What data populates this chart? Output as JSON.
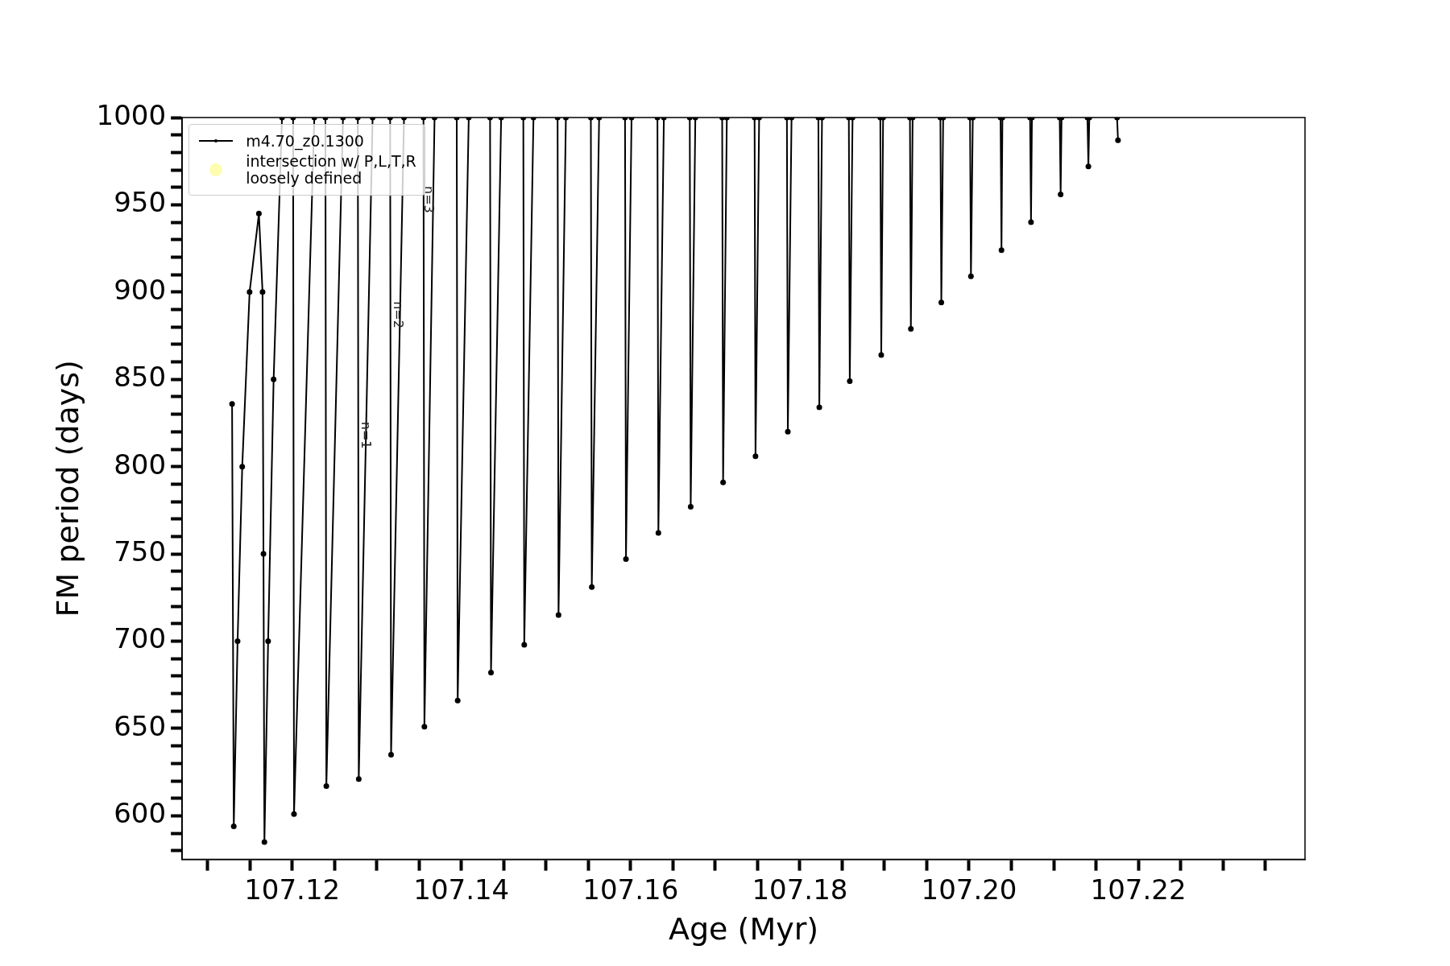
{
  "chart_data": {
    "type": "line",
    "xlabel": "Age (Myr)",
    "ylabel": "FM period (days)",
    "xlim": [
      107.107,
      107.2397
    ],
    "ylim": [
      575,
      1000
    ],
    "xticks": [
      {
        "value": 107.11,
        "label": null
      },
      {
        "value": 107.115,
        "label": null
      },
      107.12,
      {
        "value": 107.125,
        "label": null
      },
      {
        "value": 107.13,
        "label": null
      },
      {
        "value": 107.135,
        "label": null
      },
      107.14,
      {
        "value": 107.145,
        "label": null
      },
      {
        "value": 107.15,
        "label": null
      },
      {
        "value": 107.155,
        "label": null
      },
      107.16,
      {
        "value": 107.165,
        "label": null
      },
      {
        "value": 107.17,
        "label": null
      },
      {
        "value": 107.175,
        "label": null
      },
      107.18,
      {
        "value": 107.185,
        "label": null
      },
      {
        "value": 107.19,
        "label": null
      },
      {
        "value": 107.195,
        "label": null
      },
      {
        "value": 107.2,
        "label": "107.20"
      },
      {
        "value": 107.205,
        "label": null
      },
      {
        "value": 107.21,
        "label": null
      },
      {
        "value": 107.215,
        "label": null
      },
      107.22,
      {
        "value": 107.225,
        "label": null
      },
      {
        "value": 107.23,
        "label": null
      },
      {
        "value": 107.235,
        "label": null
      }
    ],
    "yticks": [
      {
        "value": 580,
        "label": null
      },
      {
        "value": 590,
        "label": null
      },
      600,
      {
        "value": 610,
        "label": null
      },
      {
        "value": 620,
        "label": null
      },
      {
        "value": 630,
        "label": null
      },
      {
        "value": 640,
        "label": null
      },
      650,
      {
        "value": 660,
        "label": null
      },
      {
        "value": 670,
        "label": null
      },
      {
        "value": 680,
        "label": null
      },
      {
        "value": 690,
        "label": null
      },
      700,
      {
        "value": 710,
        "label": null
      },
      {
        "value": 720,
        "label": null
      },
      {
        "value": 730,
        "label": null
      },
      {
        "value": 740,
        "label": null
      },
      750,
      {
        "value": 760,
        "label": null
      },
      {
        "value": 770,
        "label": null
      },
      {
        "value": 780,
        "label": null
      },
      {
        "value": 790,
        "label": null
      },
      800,
      {
        "value": 810,
        "label": null
      },
      {
        "value": 820,
        "label": null
      },
      {
        "value": 830,
        "label": null
      },
      {
        "value": 840,
        "label": null
      },
      850,
      {
        "value": 860,
        "label": null
      },
      {
        "value": 870,
        "label": null
      },
      {
        "value": 880,
        "label": null
      },
      {
        "value": 890,
        "label": null
      },
      900,
      {
        "value": 910,
        "label": null
      },
      {
        "value": 920,
        "label": null
      },
      {
        "value": 930,
        "label": null
      },
      {
        "value": 940,
        "label": null
      },
      950,
      {
        "value": 960,
        "label": null
      },
      {
        "value": 970,
        "label": null
      },
      {
        "value": 980,
        "label": null
      },
      {
        "value": 990,
        "label": null
      },
      1000
    ],
    "grid": false,
    "legend": "top left",
    "marker": "circle",
    "line_style": "solid",
    "series": [
      {
        "name": "m4.70_z0.1300",
        "color": "#000000",
        "x": [
          107.1129,
          107.1131,
          107.11355,
          107.1141,
          107.11497,
          107.11607,
          107.1165,
          107.11661,
          107.11672,
          107.11716,
          107.11781,
          107.1188,
          null,
          107.12011,
          107.12022,
          107.12262,
          null,
          107.12393,
          107.12404,
          107.12601,
          null,
          107.12776,
          107.12787,
          107.12951,
          null,
          107.13158,
          107.13169,
          107.13322,
          null,
          107.13552,
          107.13563,
          107.13683,
          null,
          107.13945,
          107.13956,
          107.14087,
          null,
          107.14339,
          107.1435,
          107.1447,
          null,
          107.14732,
          107.14743,
          107.14852,
          null,
          107.15137,
          107.15148,
          107.15235,
          null,
          107.1553,
          107.15541,
          107.15628,
          null,
          107.15934,
          107.15945,
          107.16011,
          null,
          107.16317,
          107.16328,
          107.16393,
          null,
          107.16699,
          107.1671,
          107.16765,
          null,
          107.17082,
          107.17093,
          107.17137,
          null,
          107.17465,
          107.17476,
          107.17519,
          null,
          107.17847,
          107.17858,
          107.17902,
          null,
          107.18219,
          107.1823,
          107.18262,
          null,
          107.18579,
          107.1859,
          107.18623,
          null,
          107.18951,
          107.18962,
          107.18984,
          null,
          107.19301,
          107.19312,
          107.19333,
          null,
          107.19661,
          107.19672,
          107.19694,
          null,
          107.20011,
          107.20022,
          107.20044,
          null,
          107.20372,
          107.20383,
          107.20394,
          null,
          107.20721,
          107.20732,
          107.20743,
          null,
          107.21071,
          107.21082,
          107.21093,
          null,
          107.21399,
          107.2141,
          107.21421,
          null,
          107.21749,
          107.2176
        ],
        "values": [
          836,
          594,
          700,
          800,
          900,
          945,
          900,
          750,
          585,
          700,
          850,
          1000,
          null,
          1000,
          601,
          1000,
          null,
          1000,
          617,
          1000,
          null,
          1000,
          621,
          1000,
          null,
          1000,
          635,
          1000,
          null,
          1000,
          651,
          1000,
          null,
          1000,
          666,
          1000,
          null,
          1000,
          682,
          1000,
          null,
          1000,
          698,
          1000,
          null,
          1000,
          715,
          1000,
          null,
          1000,
          731,
          1000,
          null,
          1000,
          747,
          1000,
          null,
          1000,
          762,
          1000,
          null,
          1000,
          777,
          1000,
          null,
          1000,
          791,
          1000,
          null,
          1000,
          806,
          1000,
          null,
          1000,
          820,
          1000,
          null,
          1000,
          834,
          1000,
          null,
          1000,
          849,
          1000,
          null,
          1000,
          864,
          1000,
          null,
          1000,
          879,
          1000,
          null,
          1000,
          894,
          1000,
          null,
          1000,
          909,
          1000,
          null,
          1000,
          924,
          1000,
          null,
          1000,
          940,
          1000,
          null,
          1000,
          956,
          1000,
          null,
          1000,
          972,
          1000,
          null,
          1000,
          987
        ]
      },
      {
        "name": "intersection w/ P,L,T,R\nloosely defined",
        "color": "#fdfdb0",
        "type": "scatter"
      }
    ],
    "annotations": [
      {
        "text": "n=1",
        "x": 107.12863,
        "y": 818
      },
      {
        "text": "n=2",
        "x": 107.13246,
        "y": 887
      },
      {
        "text": "n=3",
        "x": 107.13607,
        "y": 953
      }
    ]
  }
}
